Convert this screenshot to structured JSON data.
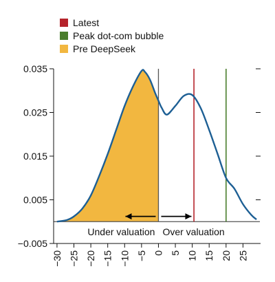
{
  "chart_data": {
    "type": "area",
    "title": "",
    "xlabel": "",
    "ylabel": "",
    "xlim": [
      -31,
      30
    ],
    "ylim": [
      -0.005,
      0.035
    ],
    "x_ticks": [
      -30,
      -25,
      -20,
      -15,
      -10,
      -5,
      0,
      5,
      10,
      15,
      20,
      25
    ],
    "x_tick_labels": [
      "−30",
      "−25",
      "−20",
      "−15",
      "−10",
      "−5",
      "0",
      "5",
      "10",
      "15",
      "20",
      "25"
    ],
    "y_ticks": [
      -0.005,
      0.005,
      0.015,
      0.025,
      0.035
    ],
    "y_tick_labels": [
      "−0.005",
      "0.005",
      "0.015",
      "0.025",
      "0.035"
    ],
    "grid": false,
    "legend_position": "top-left",
    "legend": [
      {
        "label": "Latest",
        "color": "#b5232b",
        "kind": "line"
      },
      {
        "label": "Peak dot-com bubble",
        "color": "#4a7d2c",
        "kind": "line"
      },
      {
        "label": "Pre DeepSeek",
        "color": "#f2b740",
        "kind": "area"
      }
    ],
    "series": [
      {
        "name": "Pre DeepSeek",
        "x": [
          -30,
          -27,
          -25,
          -22.5,
          -20,
          -17.5,
          -15,
          -12.5,
          -10,
          -7.5,
          -5,
          -4,
          -2.5,
          -1,
          0,
          1,
          2.5,
          5,
          7.5,
          10,
          12.5,
          15,
          17.5,
          20,
          22.5,
          25,
          27.5,
          29
        ],
        "y": [
          0,
          0.0004,
          0.0012,
          0.003,
          0.006,
          0.0105,
          0.0155,
          0.021,
          0.0265,
          0.031,
          0.0345,
          0.0343,
          0.0325,
          0.0295,
          0.0277,
          0.026,
          0.0245,
          0.0265,
          0.0288,
          0.029,
          0.026,
          0.021,
          0.0155,
          0.01,
          0.0075,
          0.004,
          0.0015,
          0.0005
        ]
      }
    ],
    "shaded_below_x": 0,
    "vertical_lines": [
      {
        "name": "Latest",
        "x": 10.5,
        "color": "#b5232b"
      },
      {
        "name": "Peak dot-com bubble",
        "x": 20,
        "color": "#4a7d2c"
      }
    ],
    "separator_x": 0,
    "baseline_y": 0,
    "annotations": [
      {
        "text": "Under valuation",
        "direction": "left"
      },
      {
        "text": "Over valuation",
        "direction": "right"
      }
    ],
    "colors": {
      "curve": "#1d5f94",
      "fill": "#f2b740",
      "separator": "#555555",
      "axis": "#111111"
    }
  }
}
